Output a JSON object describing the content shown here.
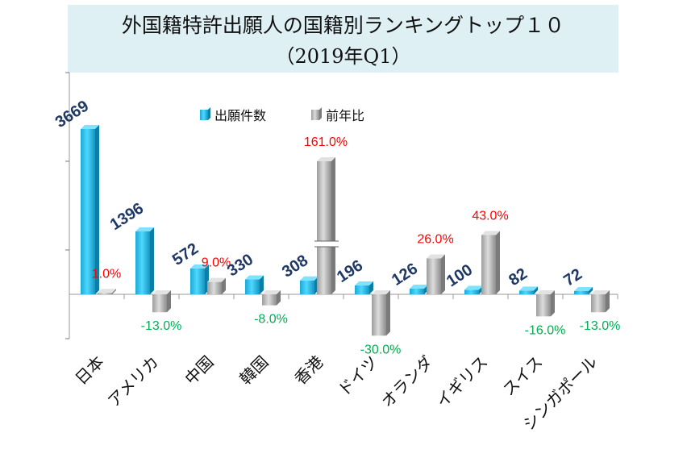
{
  "chart_data": {
    "type": "bar",
    "title": "外国籍特許出願人の国籍別ランキングトップ１０",
    "subtitle": "（2019年Q1）",
    "categories": [
      "日本",
      "アメリカ",
      "中国",
      "韓国",
      "香港",
      "ドイツ",
      "オランダ",
      "イギリス",
      "スイス",
      "シンガポール"
    ],
    "series": [
      {
        "name": "出願件数",
        "values": [
          3669,
          1396,
          572,
          330,
          308,
          196,
          126,
          100,
          82,
          72
        ],
        "labels": [
          "3669",
          "1396",
          "572",
          "330",
          "308",
          "196",
          "126",
          "100",
          "82",
          "72"
        ],
        "color": "#1ec4ef"
      },
      {
        "name": "前年比",
        "values": [
          1.0,
          -13.0,
          9.0,
          -8.0,
          161.0,
          -30.0,
          26.0,
          43.0,
          -16.0,
          -13.0
        ],
        "labels": [
          "1.0%",
          "-13.0%",
          "9.0%",
          "-8.0%",
          "161.0%",
          "-30.0%",
          "26.0%",
          "43.0%",
          "-16.0%",
          "-13.0%"
        ],
        "color": "#b8b8b8"
      }
    ],
    "axis_break_on": "香港",
    "legend_position": "top-center",
    "grid": false,
    "colors": {
      "count_label": "#1f3864",
      "positive_label": "#ff0000",
      "negative_label": "#00b050"
    }
  }
}
